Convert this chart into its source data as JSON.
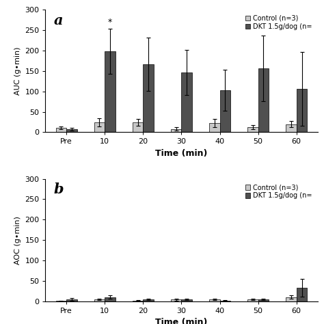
{
  "panel_a": {
    "categories": [
      "Pre",
      "10",
      "20",
      "30",
      "40",
      "50",
      "60"
    ],
    "control_values": [
      11,
      24,
      24,
      8,
      23,
      12,
      20
    ],
    "control_errors": [
      4,
      10,
      8,
      4,
      10,
      5,
      8
    ],
    "dkt_values": [
      7,
      198,
      167,
      146,
      103,
      156,
      106
    ],
    "dkt_errors": [
      3,
      55,
      65,
      55,
      50,
      80,
      90
    ],
    "ylabel": "AUC (g•min)",
    "xlabel": "Time (min)",
    "ylim": [
      0,
      300
    ],
    "yticks": [
      0,
      50,
      100,
      150,
      200,
      250,
      300
    ],
    "label": "a",
    "star_index": 1
  },
  "panel_b": {
    "categories": [
      "Pre",
      "10",
      "20",
      "30",
      "40",
      "50",
      "60"
    ],
    "control_values": [
      1,
      5,
      2,
      4,
      5,
      5,
      10
    ],
    "control_errors": [
      1,
      2,
      1,
      2,
      2,
      2,
      4
    ],
    "dkt_values": [
      5,
      10,
      5,
      5,
      2,
      5,
      33
    ],
    "dkt_errors": [
      3,
      4,
      2,
      2,
      1,
      2,
      22
    ],
    "ylabel": "AOC (g•min)",
    "xlabel": "Time (min)",
    "ylim": [
      0,
      300
    ],
    "yticks": [
      0,
      50,
      100,
      150,
      200,
      250,
      300
    ],
    "label": "b"
  },
  "control_color": "#c8c8c8",
  "dkt_color": "#505050",
  "legend_control": "Control (n=3)",
  "legend_dkt": "DKT 1.5g/dog (n=",
  "bar_width": 0.28,
  "figsize": [
    4.74,
    4.74
  ],
  "dpi": 100,
  "background_color": "#ffffff"
}
